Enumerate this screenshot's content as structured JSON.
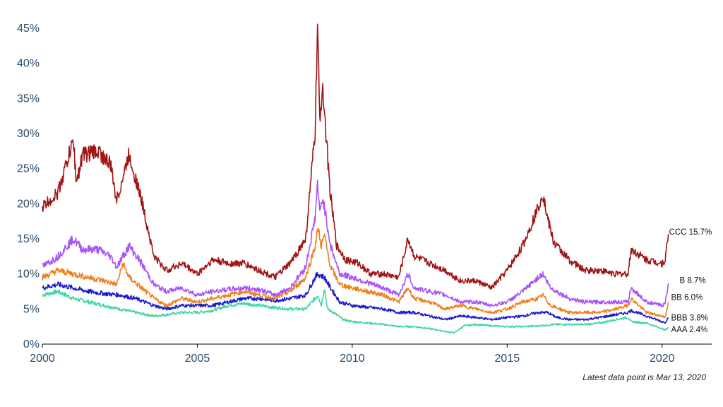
{
  "chart_data": {
    "type": "line",
    "title": "",
    "xlabel": "",
    "ylabel": "",
    "xlim": [
      2000,
      2021.6
    ],
    "ylim": [
      0,
      45
    ],
    "y_ticks": [
      0,
      5,
      10,
      15,
      20,
      25,
      30,
      35,
      40,
      45
    ],
    "y_tick_labels": [
      "0%",
      "5%",
      "10%",
      "15%",
      "20%",
      "25%",
      "30%",
      "35%",
      "40%",
      "45%"
    ],
    "x_ticks": [
      2000,
      2005,
      2010,
      2015,
      2020
    ],
    "x_tick_labels": [
      "2000",
      "2005",
      "2010",
      "2015",
      "2020"
    ],
    "grid": false,
    "series": [
      {
        "name": "CCC",
        "color": "#a11515",
        "end_label": "CCC 15.7%",
        "x": [
          2000.0,
          2000.5,
          2001.0,
          2001.1,
          2001.3,
          2001.8,
          2002.2,
          2002.4,
          2002.8,
          2003.2,
          2003.6,
          2004.0,
          2004.5,
          2005.0,
          2005.5,
          2006.0,
          2006.5,
          2007.0,
          2007.5,
          2008.0,
          2008.5,
          2008.8,
          2008.88,
          2008.95,
          2009.05,
          2009.15,
          2009.3,
          2009.5,
          2009.8,
          2010.2,
          2010.6,
          2011.0,
          2011.5,
          2011.8,
          2012.0,
          2012.5,
          2013.0,
          2013.5,
          2014.0,
          2014.5,
          2015.0,
          2015.5,
          2016.0,
          2016.15,
          2016.3,
          2016.5,
          2017.0,
          2017.5,
          2018.0,
          2018.5,
          2018.9,
          2019.0,
          2019.5,
          2020.0,
          2020.1,
          2020.2
        ],
        "values": [
          19.5,
          21.5,
          29.0,
          23.0,
          27.0,
          27.5,
          25.5,
          20.5,
          27.0,
          20.5,
          12.5,
          10.5,
          11.5,
          10.0,
          12.0,
          11.5,
          11.5,
          10.5,
          9.5,
          11.5,
          15.0,
          30.0,
          45.0,
          32.0,
          37.0,
          30.0,
          21.0,
          14.0,
          12.0,
          11.5,
          10.0,
          10.0,
          9.5,
          15.0,
          12.5,
          11.5,
          10.5,
          9.0,
          9.0,
          8.0,
          10.5,
          14.0,
          19.5,
          21.5,
          18.0,
          14.5,
          12.0,
          10.5,
          10.5,
          10.0,
          10.0,
          13.5,
          12.0,
          11.5,
          12.0,
          15.7
        ]
      },
      {
        "name": "B",
        "color": "#a855f7",
        "end_label": "B 8.7%",
        "x": [
          2000.0,
          2000.5,
          2001.0,
          2001.3,
          2001.8,
          2002.2,
          2002.4,
          2002.8,
          2003.2,
          2003.6,
          2004.0,
          2004.5,
          2005.0,
          2005.5,
          2006.0,
          2006.5,
          2007.0,
          2007.5,
          2008.0,
          2008.5,
          2008.8,
          2008.88,
          2008.95,
          2009.05,
          2009.3,
          2009.6,
          2010.0,
          2011.0,
          2011.5,
          2011.8,
          2012.0,
          2012.5,
          2013.0,
          2013.5,
          2014.0,
          2014.5,
          2015.0,
          2015.5,
          2016.0,
          2016.15,
          2016.4,
          2017.0,
          2017.5,
          2018.0,
          2018.5,
          2018.9,
          2019.0,
          2019.5,
          2020.0,
          2020.1,
          2020.2
        ],
        "values": [
          11.0,
          12.5,
          15.0,
          13.5,
          13.5,
          12.5,
          11.0,
          14.0,
          11.5,
          8.5,
          7.5,
          8.0,
          7.0,
          7.5,
          7.8,
          8.0,
          7.8,
          7.0,
          8.0,
          11.0,
          18.0,
          23.0,
          18.5,
          21.0,
          14.0,
          10.0,
          9.5,
          8.0,
          7.0,
          10.0,
          8.0,
          7.5,
          7.0,
          6.0,
          6.0,
          5.5,
          6.0,
          7.5,
          9.5,
          10.0,
          8.0,
          6.5,
          6.0,
          6.0,
          6.0,
          6.0,
          8.0,
          6.0,
          5.5,
          5.8,
          8.7
        ]
      },
      {
        "name": "BB",
        "color": "#f07f1a",
        "end_label": "BB 6.0%",
        "x": [
          2000.0,
          2000.5,
          2001.0,
          2001.5,
          2002.0,
          2002.4,
          2002.6,
          2002.8,
          2003.2,
          2003.6,
          2004.0,
          2004.5,
          2005.0,
          2005.5,
          2006.0,
          2006.5,
          2007.0,
          2007.5,
          2008.0,
          2008.5,
          2008.8,
          2008.9,
          2009.0,
          2009.1,
          2009.3,
          2009.6,
          2010.0,
          2011.0,
          2011.5,
          2011.8,
          2012.0,
          2012.5,
          2013.0,
          2013.5,
          2014.0,
          2014.5,
          2015.0,
          2015.5,
          2016.0,
          2016.15,
          2016.4,
          2017.0,
          2017.5,
          2018.0,
          2018.5,
          2018.9,
          2019.0,
          2019.5,
          2020.0,
          2020.1,
          2020.2
        ],
        "values": [
          9.5,
          10.5,
          10.0,
          9.5,
          9.0,
          8.5,
          11.5,
          9.5,
          8.0,
          6.5,
          5.5,
          6.5,
          6.0,
          6.5,
          7.0,
          7.5,
          7.0,
          6.5,
          7.5,
          9.5,
          14.0,
          16.5,
          14.0,
          15.5,
          11.0,
          8.5,
          8.0,
          7.0,
          6.0,
          8.0,
          6.5,
          6.0,
          5.0,
          5.5,
          5.0,
          4.5,
          5.0,
          6.0,
          6.5,
          7.0,
          5.5,
          4.5,
          4.5,
          4.5,
          5.0,
          5.5,
          6.5,
          4.5,
          4.0,
          3.8,
          6.0
        ]
      },
      {
        "name": "BBB",
        "color": "#1a1acc",
        "end_label": "BBB 3.8%",
        "x": [
          2000.0,
          2000.5,
          2001.0,
          2001.5,
          2002.0,
          2002.5,
          2003.0,
          2003.6,
          2004.0,
          2004.5,
          2005.0,
          2005.5,
          2006.0,
          2006.5,
          2007.0,
          2007.5,
          2008.0,
          2008.5,
          2008.8,
          2008.9,
          2009.1,
          2009.3,
          2009.6,
          2010.0,
          2011.0,
          2011.5,
          2012.0,
          2012.5,
          2013.0,
          2013.5,
          2014.0,
          2014.5,
          2015.0,
          2015.5,
          2016.0,
          2016.3,
          2016.6,
          2017.0,
          2017.5,
          2018.0,
          2018.5,
          2018.9,
          2019.0,
          2019.5,
          2020.0,
          2020.1,
          2020.2
        ],
        "values": [
          8.0,
          8.5,
          8.0,
          7.5,
          7.2,
          7.0,
          6.5,
          5.5,
          5.0,
          5.5,
          5.5,
          5.5,
          6.0,
          6.5,
          6.5,
          6.2,
          6.5,
          7.0,
          9.5,
          10.0,
          9.5,
          8.0,
          6.0,
          5.5,
          5.0,
          4.5,
          4.5,
          4.0,
          3.5,
          4.0,
          3.8,
          3.5,
          3.8,
          4.0,
          4.5,
          4.5,
          3.8,
          3.5,
          3.5,
          3.8,
          4.2,
          4.5,
          4.8,
          4.0,
          3.2,
          3.1,
          3.8
        ]
      },
      {
        "name": "AAA",
        "color": "#3dd6a3",
        "end_label": "AAA 2.4%",
        "x": [
          2000.0,
          2000.5,
          2001.0,
          2001.5,
          2002.0,
          2002.5,
          2003.0,
          2003.6,
          2004.0,
          2004.5,
          2005.0,
          2005.5,
          2006.0,
          2006.5,
          2007.0,
          2007.5,
          2008.0,
          2008.5,
          2008.8,
          2008.9,
          2009.0,
          2009.1,
          2009.2,
          2009.4,
          2009.7,
          2010.0,
          2011.0,
          2011.5,
          2012.0,
          2012.5,
          2013.0,
          2013.3,
          2013.6,
          2014.0,
          2014.5,
          2015.0,
          2015.5,
          2016.0,
          2016.5,
          2017.0,
          2017.5,
          2018.0,
          2018.5,
          2018.9,
          2019.0,
          2019.5,
          2020.0,
          2020.1,
          2020.2
        ],
        "values": [
          7.0,
          7.5,
          6.5,
          6.0,
          5.5,
          5.0,
          4.5,
          4.0,
          4.2,
          4.5,
          4.5,
          4.8,
          5.5,
          5.8,
          5.5,
          5.2,
          5.0,
          5.0,
          6.5,
          7.0,
          5.5,
          8.0,
          5.0,
          4.5,
          3.5,
          3.2,
          2.8,
          2.5,
          2.5,
          2.2,
          1.8,
          1.6,
          2.6,
          2.8,
          2.6,
          2.5,
          2.5,
          2.6,
          2.8,
          2.8,
          2.8,
          3.0,
          3.5,
          3.8,
          3.2,
          3.0,
          2.2,
          2.0,
          2.4
        ]
      }
    ]
  },
  "footnote": "Latest data point is Mar 13, 2020"
}
